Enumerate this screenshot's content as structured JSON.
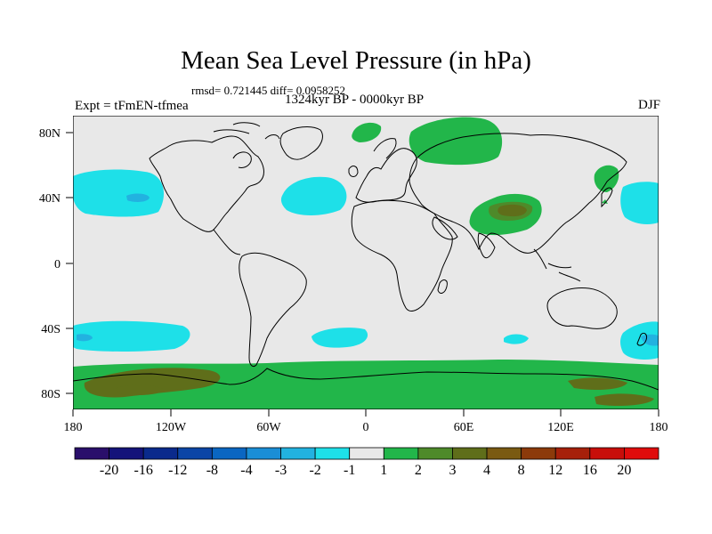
{
  "title": "Mean Sea Level Pressure (in hPa)",
  "stats": "rmsd= 0.721445 diff= 0.0958252",
  "experiment": "Expt = tFmEN-tfmea",
  "period": "1324kyr BP - 0000kyr BP",
  "season": "DJF",
  "axes": {
    "lat_labels": [
      "80N",
      "40N",
      "0",
      "40S",
      "80S"
    ],
    "lon_labels": [
      "180",
      "120W",
      "60W",
      "0",
      "60E",
      "120E",
      "180"
    ]
  },
  "colorbar": {
    "labels": [
      "-20",
      "-16",
      "-12",
      "-8",
      "-4",
      "-3",
      "-2",
      "-1",
      "1",
      "2",
      "3",
      "4",
      "8",
      "12",
      "16",
      "20"
    ],
    "colors": [
      "#2a0f6b",
      "#14137a",
      "#0a2a8c",
      "#0b45a6",
      "#0a66c2",
      "#1a8ed6",
      "#22b2e0",
      "#1ee0e8",
      "#e8e8e8",
      "#22b64a",
      "#4e8a2a",
      "#5f6e1a",
      "#7a5a12",
      "#8c3a0a",
      "#a6200a",
      "#c80e0a",
      "#e00c0c"
    ]
  },
  "colors": {
    "background_field": "#e8e8e8",
    "positive_2": "#22b64a",
    "positive_3": "#4e8a2a",
    "negative_2": "#22b2e0",
    "negative_1": "#1ee0e8"
  }
}
